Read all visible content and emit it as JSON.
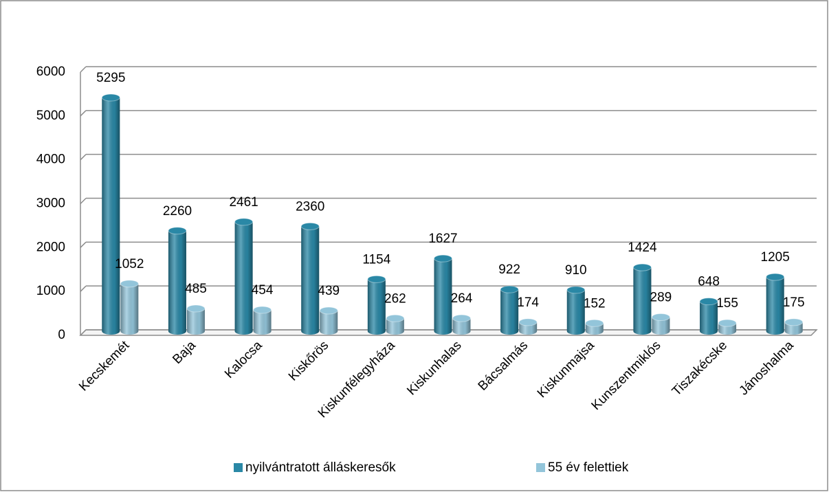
{
  "chart_data": {
    "type": "bar",
    "categories": [
      "Kecskemét",
      "Baja",
      "Kalocsa",
      "Kiskőrös",
      "Kiskunfélegyháza",
      "Kiskunhalas",
      "Bácsalmás",
      "Kiskunmajsa",
      "Kunszentmiklós",
      "Tiszakécske",
      "Jánoshalma"
    ],
    "series": [
      {
        "name": "nyilvántratott álláskeresők",
        "color": "#2a88a6",
        "values": [
          5295,
          2260,
          2461,
          2360,
          1154,
          1627,
          922,
          910,
          1424,
          648,
          1205
        ]
      },
      {
        "name": "55 év felettiek",
        "color": "#93c5da",
        "values": [
          1052,
          485,
          454,
          439,
          262,
          264,
          174,
          152,
          289,
          155,
          175
        ]
      }
    ],
    "ylim": [
      0,
      6000
    ],
    "yticks": [
      0,
      1000,
      2000,
      3000,
      4000,
      5000,
      6000
    ],
    "grid": true,
    "legend": "bottom"
  }
}
